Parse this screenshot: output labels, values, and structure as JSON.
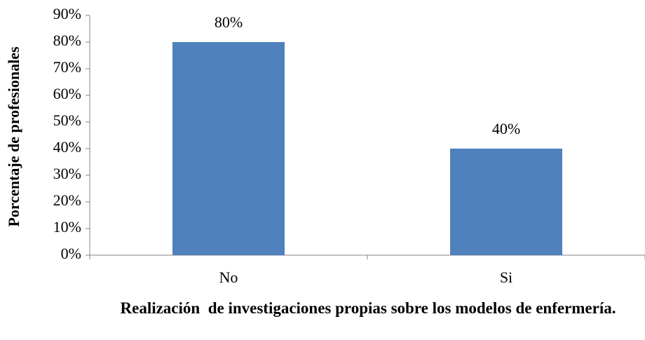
{
  "chart_data": {
    "type": "bar",
    "categories": [
      "No",
      "Si"
    ],
    "values": [
      80,
      40
    ],
    "value_labels": [
      "80%",
      "40%"
    ],
    "color": "#4f81bd",
    "ylim": [
      0,
      90
    ],
    "yticks": [
      {
        "value": 0,
        "label": "0%"
      },
      {
        "value": 10,
        "label": "10%"
      },
      {
        "value": 20,
        "label": "20%"
      },
      {
        "value": 30,
        "label": "30%"
      },
      {
        "value": 40,
        "label": "40%"
      },
      {
        "value": 50,
        "label": "50%"
      },
      {
        "value": 60,
        "label": "60%"
      },
      {
        "value": 70,
        "label": "70%"
      },
      {
        "value": 80,
        "label": "80%"
      },
      {
        "value": 90,
        "label": "90%"
      }
    ],
    "y_label": "Porcentaje de profesionales",
    "x_label": "Realización  de investigaciones propias sobre los modelos de enfermería."
  }
}
